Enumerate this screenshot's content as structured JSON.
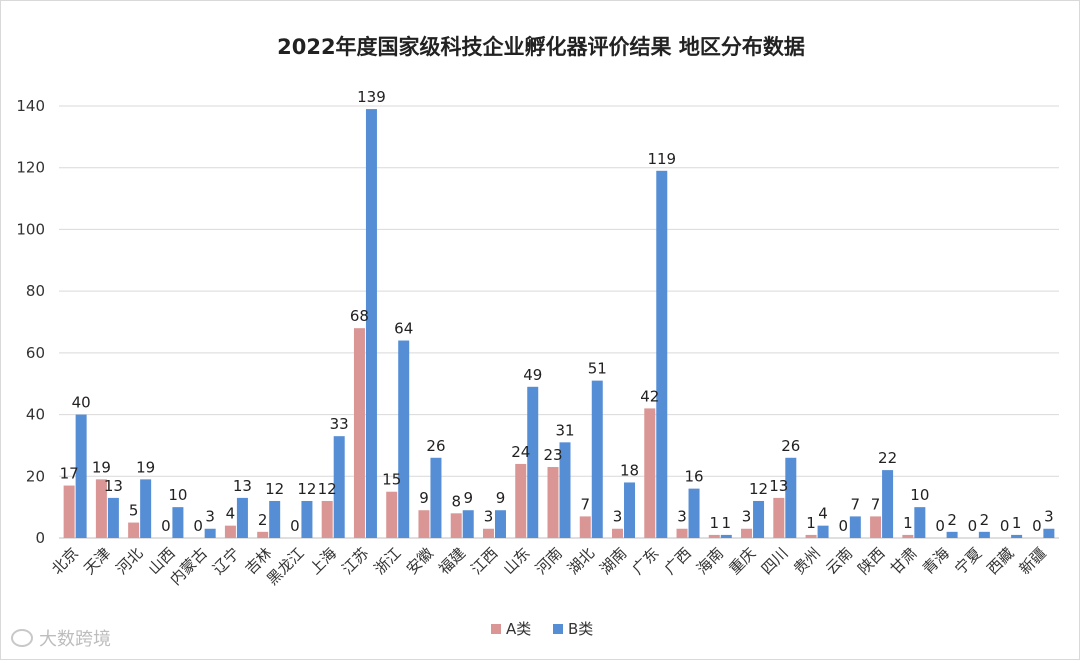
{
  "chart_data": {
    "type": "bar",
    "title": "2022年度国家级科技企业孵化器评价结果 地区分布数据",
    "xlabel": "",
    "ylabel": "",
    "ylim": [
      0,
      140
    ],
    "yticks": [
      0,
      20,
      40,
      60,
      80,
      100,
      120,
      140
    ],
    "grid": true,
    "legend_position": "bottom",
    "categories": [
      "北京",
      "天津",
      "河北",
      "山西",
      "内蒙古",
      "辽宁",
      "吉林",
      "黑龙江",
      "上海",
      "江苏",
      "浙江",
      "安徽",
      "福建",
      "江西",
      "山东",
      "河南",
      "湖北",
      "湖南",
      "广东",
      "广西",
      "海南",
      "重庆",
      "四川",
      "贵州",
      "云南",
      "陕西",
      "甘肃",
      "青海",
      "宁夏",
      "西藏",
      "新疆"
    ],
    "series": [
      {
        "name": "A类",
        "color": "#d99694",
        "values": [
          17,
          19,
          5,
          0,
          0,
          4,
          2,
          0,
          12,
          68,
          15,
          9,
          8,
          3,
          24,
          23,
          7,
          3,
          42,
          3,
          1,
          3,
          13,
          1,
          0,
          7,
          1,
          0,
          0,
          0,
          0
        ]
      },
      {
        "name": "B类",
        "color": "#558ed5",
        "values": [
          40,
          13,
          19,
          10,
          3,
          13,
          12,
          12,
          33,
          139,
          64,
          26,
          9,
          9,
          49,
          31,
          51,
          18,
          119,
          16,
          1,
          12,
          26,
          4,
          7,
          22,
          10,
          2,
          2,
          1,
          3
        ]
      }
    ]
  },
  "watermark": {
    "text": "大数跨境"
  }
}
